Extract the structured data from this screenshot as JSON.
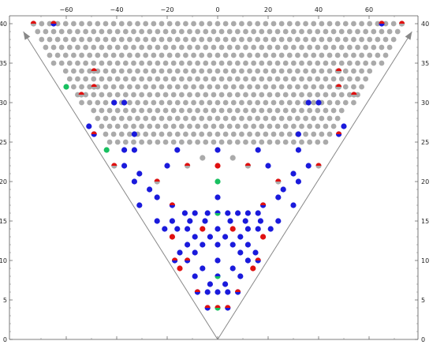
{
  "chart_data": {
    "type": "scatter",
    "title": "",
    "xlabel": "",
    "ylabel": "",
    "xlim": [
      -77,
      79
    ],
    "ylim": [
      0,
      41
    ],
    "x_ticks": [
      -60,
      -40,
      -20,
      0,
      20,
      40,
      60
    ],
    "y_ticks": [
      0,
      5,
      10,
      15,
      20,
      25,
      30,
      35,
      40
    ],
    "x_tick_labels": [
      "−60",
      "−40",
      "−20",
      "0",
      "20",
      "40",
      "60"
    ],
    "y_tick_labels": [
      "0",
      "5",
      "10",
      "15",
      "20",
      "25",
      "30",
      "35",
      "40"
    ],
    "grid": false,
    "legend": "none",
    "colors": {
      "gray": "#aaaaaa",
      "blue": "#1a1adc",
      "red": "#e01010",
      "green": "#18c060",
      "axis": "#555555",
      "arrow": "#888888"
    },
    "arrows": [
      {
        "from": [
          0,
          0
        ],
        "to": [
          -77,
          39
        ]
      },
      {
        "from": [
          0,
          0
        ],
        "to": [
          77,
          39
        ]
      }
    ],
    "gray_region": {
      "description": "triangular lattice of gray points filling the upper band",
      "y_top": 40,
      "y_bottom": 25,
      "x_step": 3.17,
      "row_step": 1,
      "left_edge_at_top": -76,
      "left_edge_at_bottom": -43,
      "right_edge_at_top": 76,
      "right_edge_at_bottom": 43
    },
    "special_points": [
      {
        "x": -73,
        "y": 40,
        "color": "red-gray"
      },
      {
        "x": -65,
        "y": 40,
        "color": "red-blue"
      },
      {
        "x": 65,
        "y": 40,
        "color": "red-blue"
      },
      {
        "x": 73,
        "y": 40,
        "color": "red-gray"
      },
      {
        "x": -49,
        "y": 34,
        "color": "red-gray"
      },
      {
        "x": 48,
        "y": 34,
        "color": "red-gray"
      },
      {
        "x": -60,
        "y": 32,
        "color": "green"
      },
      {
        "x": -49,
        "y": 32,
        "color": "red-gray"
      },
      {
        "x": 48,
        "y": 32,
        "color": "red-gray"
      },
      {
        "x": -54,
        "y": 31,
        "color": "red-gray"
      },
      {
        "x": 54,
        "y": 31,
        "color": "red-gray"
      },
      {
        "x": -41,
        "y": 30,
        "color": "blue"
      },
      {
        "x": -37,
        "y": 30,
        "color": "blue"
      },
      {
        "x": 36,
        "y": 30,
        "color": "blue"
      },
      {
        "x": 40,
        "y": 30,
        "color": "blue"
      },
      {
        "x": -51,
        "y": 27,
        "color": "blue"
      },
      {
        "x": 50,
        "y": 27,
        "color": "blue"
      },
      {
        "x": -49,
        "y": 26,
        "color": "red-blue"
      },
      {
        "x": -33,
        "y": 26,
        "color": "blue"
      },
      {
        "x": 32,
        "y": 26,
        "color": "blue"
      },
      {
        "x": 48,
        "y": 26,
        "color": "red-blue"
      },
      {
        "x": -44,
        "y": 24,
        "color": "green"
      },
      {
        "x": -37,
        "y": 24,
        "color": "blue"
      },
      {
        "x": -33,
        "y": 24,
        "color": "blue"
      },
      {
        "x": -16,
        "y": 24,
        "color": "blue"
      },
      {
        "x": 0,
        "y": 24,
        "color": "blue"
      },
      {
        "x": 16,
        "y": 24,
        "color": "blue"
      },
      {
        "x": 32,
        "y": 24,
        "color": "blue"
      },
      {
        "x": -6,
        "y": 23,
        "color": "gray"
      },
      {
        "x": 6,
        "y": 23,
        "color": "gray"
      },
      {
        "x": -41,
        "y": 22,
        "color": "red-gray"
      },
      {
        "x": -37,
        "y": 22,
        "color": "blue"
      },
      {
        "x": -20,
        "y": 22,
        "color": "blue"
      },
      {
        "x": -12,
        "y": 22,
        "color": "red-gray"
      },
      {
        "x": 0,
        "y": 22,
        "color": "red"
      },
      {
        "x": 12,
        "y": 22,
        "color": "red-gray"
      },
      {
        "x": 20,
        "y": 22,
        "color": "blue"
      },
      {
        "x": 36,
        "y": 22,
        "color": "blue"
      },
      {
        "x": 40,
        "y": 22,
        "color": "red-gray"
      },
      {
        "x": -31,
        "y": 21,
        "color": "blue"
      },
      {
        "x": 30,
        "y": 21,
        "color": "blue"
      },
      {
        "x": -33,
        "y": 20,
        "color": "blue"
      },
      {
        "x": -24,
        "y": 20,
        "color": "red-gray"
      },
      {
        "x": 0,
        "y": 20,
        "color": "green"
      },
      {
        "x": 24,
        "y": 20,
        "color": "red-gray"
      },
      {
        "x": 32,
        "y": 20,
        "color": "blue"
      },
      {
        "x": -27,
        "y": 19,
        "color": "blue"
      },
      {
        "x": 26,
        "y": 19,
        "color": "blue"
      },
      {
        "x": -24,
        "y": 18,
        "color": "blue"
      },
      {
        "x": 0,
        "y": 18,
        "color": "blue"
      },
      {
        "x": 24,
        "y": 18,
        "color": "blue"
      },
      {
        "x": -31,
        "y": 17,
        "color": "blue"
      },
      {
        "x": -18,
        "y": 17,
        "color": "red-blue"
      },
      {
        "x": 18,
        "y": 17,
        "color": "red-blue"
      },
      {
        "x": 30,
        "y": 17,
        "color": "blue"
      },
      {
        "x": -13,
        "y": 16,
        "color": "blue"
      },
      {
        "x": -9,
        "y": 16,
        "color": "blue"
      },
      {
        "x": -4,
        "y": 16,
        "color": "blue"
      },
      {
        "x": 0,
        "y": 16,
        "color": "blue-green"
      },
      {
        "x": 4,
        "y": 16,
        "color": "blue"
      },
      {
        "x": 8,
        "y": 16,
        "color": "blue"
      },
      {
        "x": 12,
        "y": 16,
        "color": "blue"
      },
      {
        "x": 16,
        "y": 16,
        "color": "blue"
      },
      {
        "x": -18,
        "y": 15,
        "color": "blue"
      },
      {
        "x": -11,
        "y": 15,
        "color": "blue"
      },
      {
        "x": -5,
        "y": 15,
        "color": "blue"
      },
      {
        "x": 5,
        "y": 15,
        "color": "blue"
      },
      {
        "x": 11,
        "y": 15,
        "color": "blue"
      },
      {
        "x": 17,
        "y": 15,
        "color": "blue"
      },
      {
        "x": -24,
        "y": 15,
        "color": "blue"
      },
      {
        "x": 24,
        "y": 15,
        "color": "blue"
      },
      {
        "x": -16,
        "y": 14,
        "color": "blue"
      },
      {
        "x": -12,
        "y": 14,
        "color": "blue"
      },
      {
        "x": -6,
        "y": 14,
        "color": "red"
      },
      {
        "x": 0,
        "y": 14,
        "color": "blue"
      },
      {
        "x": 6,
        "y": 14,
        "color": "red"
      },
      {
        "x": 12,
        "y": 14,
        "color": "blue"
      },
      {
        "x": 16,
        "y": 14,
        "color": "blue"
      },
      {
        "x": -21,
        "y": 14,
        "color": "blue"
      },
      {
        "x": 21,
        "y": 14,
        "color": "blue"
      },
      {
        "x": -18,
        "y": 13,
        "color": "red"
      },
      {
        "x": -9,
        "y": 13,
        "color": "blue"
      },
      {
        "x": -3,
        "y": 13,
        "color": "blue"
      },
      {
        "x": 3,
        "y": 13,
        "color": "blue"
      },
      {
        "x": 9,
        "y": 13,
        "color": "blue"
      },
      {
        "x": 18,
        "y": 13,
        "color": "red"
      },
      {
        "x": -12,
        "y": 12,
        "color": "blue"
      },
      {
        "x": -6,
        "y": 12,
        "color": "blue"
      },
      {
        "x": 0,
        "y": 12,
        "color": "blue"
      },
      {
        "x": 6,
        "y": 12,
        "color": "blue"
      },
      {
        "x": 12,
        "y": 12,
        "color": "blue"
      },
      {
        "x": -15,
        "y": 11,
        "color": "blue"
      },
      {
        "x": -9,
        "y": 11,
        "color": "blue"
      },
      {
        "x": 9,
        "y": 11,
        "color": "blue"
      },
      {
        "x": 15,
        "y": 11,
        "color": "blue"
      },
      {
        "x": -17,
        "y": 10,
        "color": "red-blue"
      },
      {
        "x": -12,
        "y": 10,
        "color": "red-blue"
      },
      {
        "x": 0,
        "y": 10,
        "color": "blue"
      },
      {
        "x": 12,
        "y": 10,
        "color": "blue"
      },
      {
        "x": 16,
        "y": 10,
        "color": "red-blue"
      },
      {
        "x": -15,
        "y": 9,
        "color": "red"
      },
      {
        "x": -6,
        "y": 9,
        "color": "blue"
      },
      {
        "x": 6,
        "y": 9,
        "color": "blue"
      },
      {
        "x": 14,
        "y": 9,
        "color": "red"
      },
      {
        "x": -9,
        "y": 8,
        "color": "blue"
      },
      {
        "x": 0,
        "y": 8,
        "color": "blue-green"
      },
      {
        "x": 9,
        "y": 8,
        "color": "blue"
      },
      {
        "x": -3,
        "y": 7,
        "color": "blue"
      },
      {
        "x": 3,
        "y": 7,
        "color": "blue"
      },
      {
        "x": -8,
        "y": 6,
        "color": "red-blue"
      },
      {
        "x": -4,
        "y": 6,
        "color": "blue"
      },
      {
        "x": 0,
        "y": 6,
        "color": "blue"
      },
      {
        "x": 4,
        "y": 6,
        "color": "blue"
      },
      {
        "x": 8,
        "y": 6,
        "color": "red-blue"
      },
      {
        "x": -4,
        "y": 4,
        "color": "red-blue"
      },
      {
        "x": 0,
        "y": 4,
        "color": "red-green"
      },
      {
        "x": 4,
        "y": 4,
        "color": "red-blue"
      }
    ]
  }
}
